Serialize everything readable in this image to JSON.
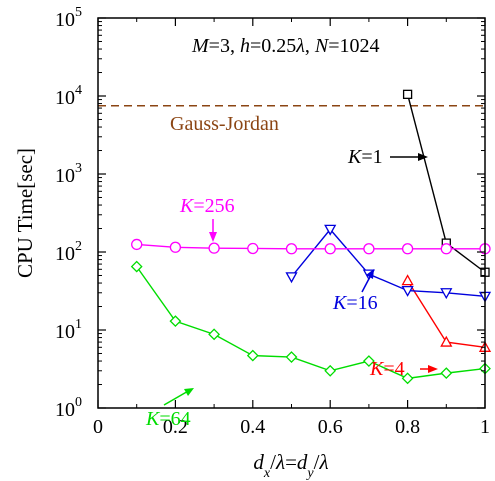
{
  "chart_data": {
    "type": "line",
    "xlabel": "dx/λ=dy/λ",
    "ylabel": "CPU Time[sec]",
    "xlim": [
      0,
      1
    ],
    "ylim": [
      1,
      100000
    ],
    "y_scale": "log",
    "x_ticks": [
      "0",
      "0.2",
      "0.4",
      "0.6",
      "0.8",
      "1"
    ],
    "y_ticks": [
      {
        "base": "10",
        "exp": "0",
        "value": 1
      },
      {
        "base": "10",
        "exp": "1",
        "value": 10
      },
      {
        "base": "10",
        "exp": "2",
        "value": 100
      },
      {
        "base": "10",
        "exp": "3",
        "value": 1000
      },
      {
        "base": "10",
        "exp": "4",
        "value": 10000
      },
      {
        "base": "10",
        "exp": "5",
        "value": 100000
      }
    ],
    "params": {
      "M_sym": "M",
      "M_val": "=3, ",
      "h_sym": "h",
      "h_val": "=0.25",
      "lambda": "λ",
      "sep": ", ",
      "N_sym": "N",
      "N_val": "=1024"
    },
    "reference": {
      "name": "Gauss-Jordan",
      "value": 7500,
      "color": "#8B4513"
    },
    "series": [
      {
        "key": "K1",
        "label_var": "K",
        "label_val": "=1",
        "color": "#000000",
        "marker": "square",
        "x": [
          0.8,
          0.9,
          1.0
        ],
        "y": [
          10500,
          130,
          55
        ]
      },
      {
        "key": "K4",
        "label_var": "K",
        "label_val": "=4",
        "color": "#ff0000",
        "marker": "triangle-up",
        "x": [
          0.8,
          0.9,
          1.0
        ],
        "y": [
          43,
          7,
          6
        ]
      },
      {
        "key": "K16",
        "label_var": "K",
        "label_val": "=16",
        "color": "#0000dd",
        "marker": "triangle-down",
        "x": [
          0.5,
          0.6,
          0.7,
          0.8,
          0.9,
          1.0
        ],
        "y": [
          48,
          195,
          52,
          32,
          30,
          27
        ]
      },
      {
        "key": "K64",
        "label_var": "K",
        "label_val": "=64",
        "color": "#00dd00",
        "marker": "diamond",
        "x": [
          0.1,
          0.2,
          0.3,
          0.4,
          0.5,
          0.6,
          0.7,
          0.8,
          0.9,
          1.0
        ],
        "y": [
          65,
          13,
          8.8,
          4.7,
          4.5,
          3.0,
          4.0,
          2.4,
          2.8,
          3.2
        ]
      },
      {
        "key": "K256",
        "label_var": "K",
        "label_val": "=256",
        "color": "#ff00ff",
        "marker": "circle",
        "x": [
          0.1,
          0.2,
          0.3,
          0.4,
          0.5,
          0.6,
          0.7,
          0.8,
          0.9,
          1.0
        ],
        "y": [
          125,
          115,
          112,
          111,
          110,
          110,
          110,
          110,
          110,
          110
        ]
      }
    ]
  }
}
